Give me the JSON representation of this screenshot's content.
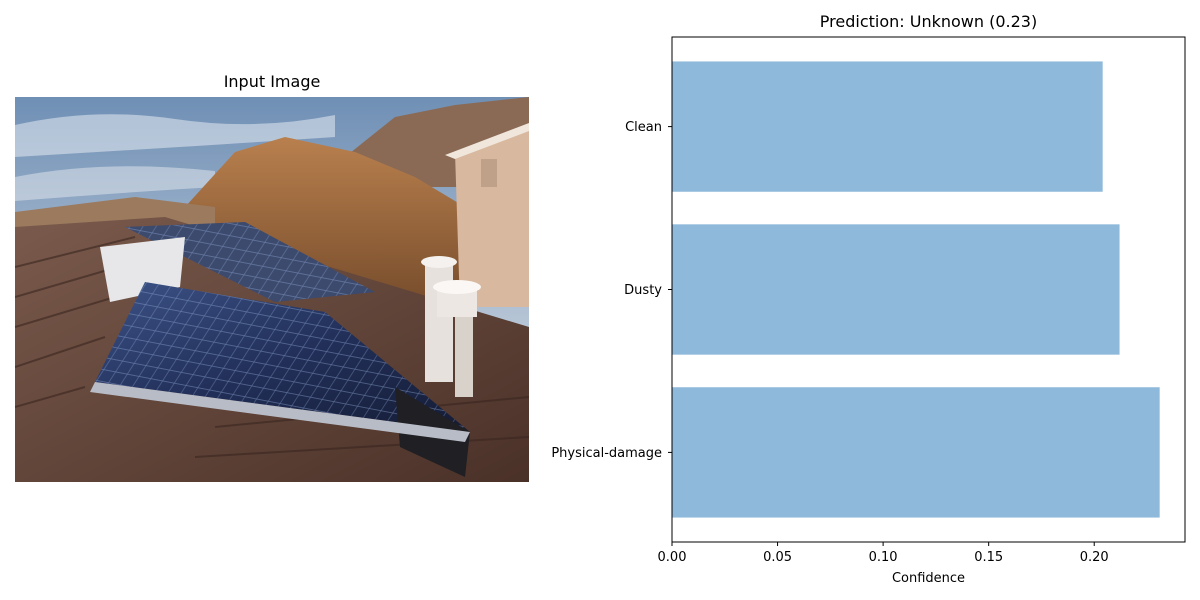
{
  "image_panel": {
    "title": "Input Image",
    "photo_icon": "rooftop-solar-panels-photo"
  },
  "chart_data": {
    "type": "bar",
    "orientation": "horizontal",
    "title": "Prediction: Unknown (0.23)",
    "xlabel": "Confidence",
    "ylabel": "",
    "categories": [
      "Clean",
      "Dusty",
      "Physical-damage"
    ],
    "values": [
      0.204,
      0.212,
      0.231
    ],
    "xlim": [
      0,
      0.243
    ],
    "xticks": [
      "0.00",
      "0.05",
      "0.10",
      "0.15",
      "0.20"
    ],
    "bar_color": "#8fb9da",
    "grid": false
  }
}
